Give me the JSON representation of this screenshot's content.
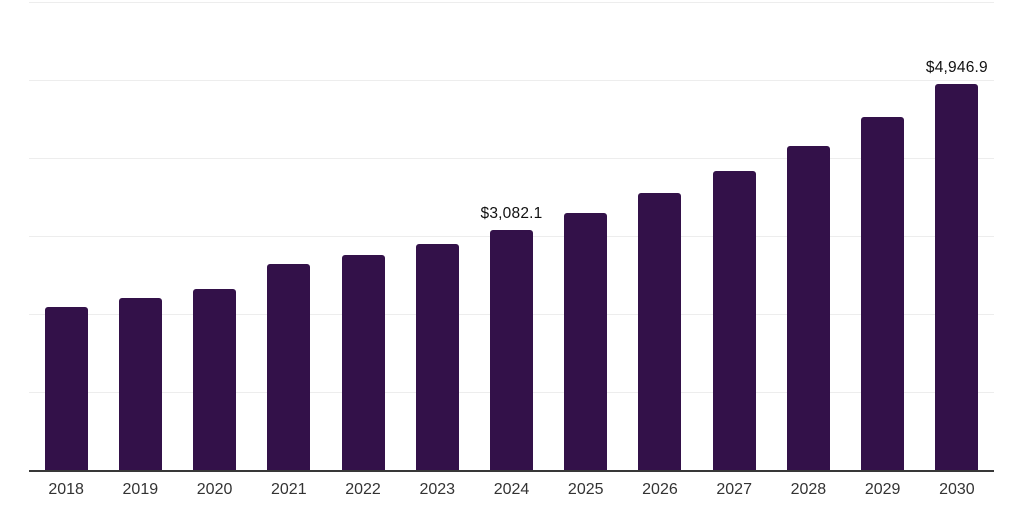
{
  "chart_data": {
    "type": "bar",
    "title": "",
    "xlabel": "",
    "ylabel": "",
    "categories": [
      "2018",
      "2019",
      "2020",
      "2021",
      "2022",
      "2023",
      "2024",
      "2025",
      "2026",
      "2027",
      "2028",
      "2029",
      "2030"
    ],
    "values": [
      2090,
      2210,
      2325,
      2635,
      2760,
      2900,
      3082.1,
      3300,
      3555,
      3835,
      4150,
      4530,
      4946.9
    ],
    "annotations": [
      {
        "category": "2024",
        "label": "$3,082.1"
      },
      {
        "category": "2030",
        "label": "$4,946.9"
      }
    ],
    "ylim": [
      0,
      6000
    ],
    "gridline_step": 1000,
    "grid": true,
    "legend": false,
    "y_axis_labels_visible": false
  },
  "style": {
    "bar_color": "#331149",
    "gridline_color": "#ededed",
    "axis_color": "#383838",
    "tick_label_color": "#333333",
    "data_label_color": "#111111",
    "background_color": "#ffffff"
  }
}
